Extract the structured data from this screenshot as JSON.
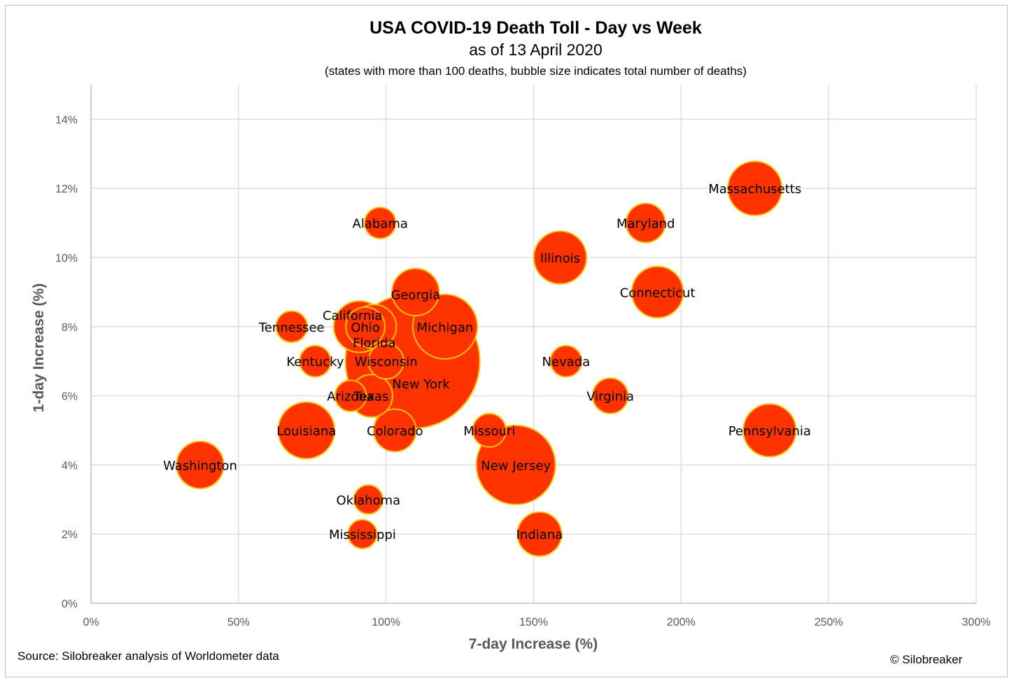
{
  "chart_data": {
    "type": "scatter",
    "title": "USA COVID-19 Death Toll - Day vs Week",
    "subtitle": "as of 13 April 2020",
    "note": "(states with more than 100 deaths, bubble size indicates total number of deaths)",
    "xlabel": "7-day Increase (%)",
    "ylabel": "1-day Increase (%)",
    "xlim": [
      0,
      300
    ],
    "ylim": [
      0,
      15
    ],
    "xticks": [
      0,
      50,
      100,
      150,
      200,
      250,
      300
    ],
    "yticks": [
      0,
      2,
      4,
      6,
      8,
      10,
      12,
      14
    ],
    "xtick_labels": [
      "0%",
      "50%",
      "100%",
      "150%",
      "200%",
      "250%",
      "300%"
    ],
    "ytick_labels": [
      "0%",
      "2%",
      "4%",
      "6%",
      "8%",
      "10%",
      "12%",
      "14%"
    ],
    "grid": true,
    "bubble_color": "#ff3300",
    "bubble_edge_color": "#ffc000",
    "points": [
      {
        "label": "New York",
        "x": 109,
        "y": 7,
        "size": 130
      },
      {
        "label": "New Jersey",
        "x": 144,
        "y": 4,
        "size": 45
      },
      {
        "label": "Michigan",
        "x": 120,
        "y": 8,
        "size": 30
      },
      {
        "label": "Massachusetts",
        "x": 225,
        "y": 12,
        "size": 21
      },
      {
        "label": "Louisiana",
        "x": 73,
        "y": 5,
        "size": 23
      },
      {
        "label": "Pennsylvania",
        "x": 230,
        "y": 5,
        "size": 20
      },
      {
        "label": "Illinois",
        "x": 159,
        "y": 10,
        "size": 20
      },
      {
        "label": "Connecticut",
        "x": 192,
        "y": 9,
        "size": 19
      },
      {
        "label": "California",
        "x": 91,
        "y": 8,
        "size": 19
      },
      {
        "label": "Georgia",
        "x": 110,
        "y": 9,
        "size": 16
      },
      {
        "label": "Washington",
        "x": 37,
        "y": 4,
        "size": 16
      },
      {
        "label": "Indiana",
        "x": 152,
        "y": 2,
        "size": 14
      },
      {
        "label": "Florida",
        "x": 96,
        "y": 8,
        "size": 14
      },
      {
        "label": "Ohio",
        "x": 93,
        "y": 8,
        "size": 11
      },
      {
        "label": "Colorado",
        "x": 103,
        "y": 5,
        "size": 13
      },
      {
        "label": "Texas",
        "x": 95,
        "y": 6,
        "size": 13
      },
      {
        "label": "Maryland",
        "x": 188,
        "y": 11,
        "size": 11
      },
      {
        "label": "Wisconsin",
        "x": 100,
        "y": 7,
        "size": 9
      },
      {
        "label": "Virginia",
        "x": 176,
        "y": 6,
        "size": 9
      },
      {
        "label": "Missouri",
        "x": 135,
        "y": 5,
        "size": 8
      },
      {
        "label": "Tennessee",
        "x": 68,
        "y": 8,
        "size": 7
      },
      {
        "label": "Nevada",
        "x": 161,
        "y": 7,
        "size": 7
      },
      {
        "label": "Arizona",
        "x": 88,
        "y": 6,
        "size": 7
      },
      {
        "label": "Alabama",
        "x": 98,
        "y": 11,
        "size": 7
      },
      {
        "label": "Kentucky",
        "x": 76,
        "y": 7,
        "size": 7
      },
      {
        "label": "Oklahoma",
        "x": 94,
        "y": 3,
        "size": 6
      },
      {
        "label": "Mississippi",
        "x": 92,
        "y": 2,
        "size": 6
      }
    ]
  },
  "footer": {
    "source": "Source: Silobreaker analysis of Worldometer data",
    "copyright": "© Silobreaker"
  }
}
